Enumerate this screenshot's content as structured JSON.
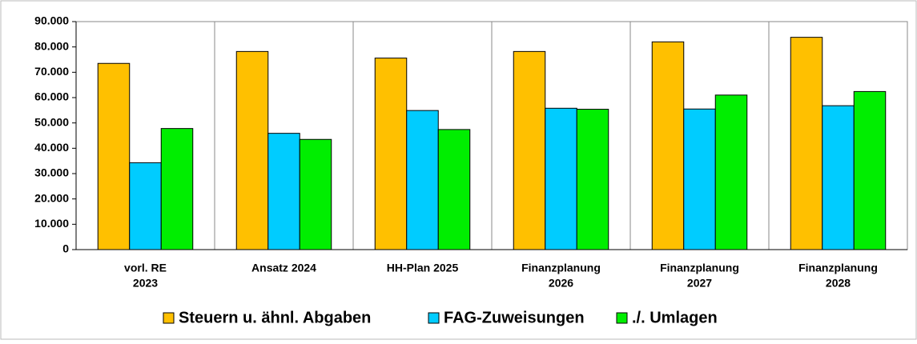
{
  "chart_data": {
    "type": "bar",
    "categories": [
      [
        "vorl. RE",
        "2023"
      ],
      [
        "Ansatz 2024"
      ],
      [
        "HH-Plan 2025"
      ],
      [
        "Finanzplanung",
        "2026"
      ],
      [
        "Finanzplanung",
        "2027"
      ],
      [
        "Finanzplanung",
        "2028"
      ]
    ],
    "series": [
      {
        "name": "Steuern u. ähnl. Abgaben",
        "color": "#ffc000",
        "values": [
          73500,
          78200,
          75600,
          78200,
          82000,
          83800
        ]
      },
      {
        "name": "FAG-Zuweisungen",
        "color": "#00ccff",
        "values": [
          34300,
          45900,
          54900,
          55800,
          55500,
          56800
        ]
      },
      {
        "name": "./. Umlagen",
        "color": "#00ee00",
        "values": [
          47800,
          43500,
          47400,
          55400,
          61000,
          62400
        ]
      }
    ],
    "ylim": [
      0,
      90000
    ],
    "yticks": [
      0,
      {
        "value": 10000,
        "label": "10.000"
      },
      {
        "value": 20000,
        "label": "20.000"
      },
      {
        "value": 30000,
        "label": "30.000"
      },
      {
        "value": 40000,
        "label": "40.000"
      },
      {
        "value": 50000,
        "label": "50.000"
      },
      {
        "value": 60000,
        "label": "60.000"
      },
      {
        "value": 70000,
        "label": "70.000"
      },
      {
        "value": 80000,
        "label": "80.000"
      },
      {
        "value": 90000,
        "label": "90.000"
      }
    ],
    "grid": false,
    "legend": "bottom"
  }
}
